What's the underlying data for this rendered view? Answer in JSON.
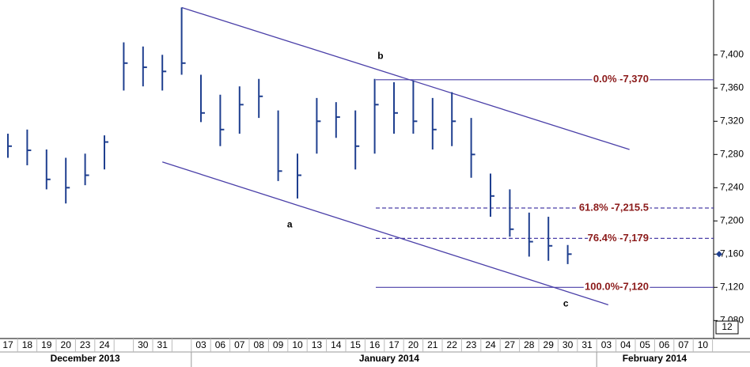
{
  "chart_data": {
    "type": "ohlc",
    "color": "#1f3f8f",
    "line_color": "#4a3fa8",
    "categories": [
      "17",
      "18",
      "19",
      "20",
      "23",
      "24",
      null,
      "30",
      "31",
      null,
      "03",
      "06",
      "07",
      "08",
      "09",
      "10",
      "13",
      "14",
      "15",
      "16",
      "17",
      "20",
      "21",
      "22",
      "23",
      "24",
      "27",
      "28",
      "29",
      "30",
      "31",
      "03",
      "04",
      "05",
      "06",
      "07",
      "10"
    ],
    "months": [
      "December 2013",
      "January 2014",
      "February 2014"
    ],
    "high": [
      7305,
      7310,
      7286,
      7276,
      7281,
      7303,
      7415,
      7410,
      7400,
      7457,
      7376,
      7352,
      7362,
      7371,
      7333,
      7281,
      7348,
      7343,
      7333,
      7371,
      7367,
      7369,
      7348,
      7355,
      7324,
      7257,
      7238,
      7210,
      7205,
      7171,
      null,
      null,
      null,
      null,
      null,
      null,
      null
    ],
    "low": [
      7276,
      7267,
      7238,
      7221,
      7243,
      7262,
      7357,
      7362,
      7357,
      7376,
      7319,
      7290,
      7305,
      7324,
      7248,
      7227,
      7281,
      7300,
      7262,
      7281,
      7305,
      7305,
      7286,
      7290,
      7252,
      7205,
      7181,
      7157,
      7152,
      7148,
      null,
      null,
      null,
      null,
      null,
      null,
      null
    ],
    "close": [
      7290,
      7285,
      7250,
      7240,
      7255,
      7295,
      7390,
      7385,
      7380,
      7390,
      7330,
      7310,
      7340,
      7350,
      7260,
      7255,
      7320,
      7325,
      7290,
      7340,
      7330,
      7320,
      7310,
      7320,
      7280,
      7230,
      7190,
      7175,
      7170,
      7160,
      null,
      null,
      null,
      null,
      null,
      null,
      null
    ],
    "ylim": [
      7066,
      7466
    ],
    "yticks": [
      {
        "value": 7080,
        "label": "7,080"
      },
      {
        "value": 7120,
        "label": "7,120"
      },
      {
        "value": 7160,
        "label": "7,160"
      },
      {
        "value": 7200,
        "label": "7,200"
      },
      {
        "value": 7240,
        "label": "7,240"
      },
      {
        "value": 7280,
        "label": "7,280"
      },
      {
        "value": 7320,
        "label": "7,320"
      },
      {
        "value": 7360,
        "label": "7,360"
      },
      {
        "value": 7400,
        "label": "7,400"
      }
    ],
    "fib_levels": [
      {
        "label": "0.0% -7,370",
        "value": 7370,
        "style": "solid"
      },
      {
        "label": "61.8% -7,215.5",
        "value": 7215.5,
        "style": "dashed"
      },
      {
        "label": "76.4% -7,179",
        "value": 7179,
        "style": "dashed"
      },
      {
        "label": "100.0%-7,120",
        "value": 7120,
        "style": "solid"
      }
    ],
    "trendlines": [
      {
        "x": [
          9,
          32.2
        ],
        "y": [
          7457,
          7286
        ]
      },
      {
        "x": [
          8,
          31.1
        ],
        "y": [
          7271,
          7099
        ]
      }
    ],
    "annotations": [
      {
        "text": "a",
        "x": 14.6,
        "y": 7195
      },
      {
        "text": "b",
        "x": 19.3,
        "y": 7398
      },
      {
        "text": "c",
        "x": 28.9,
        "y": 7100
      }
    ],
    "axis_badge": "12"
  }
}
